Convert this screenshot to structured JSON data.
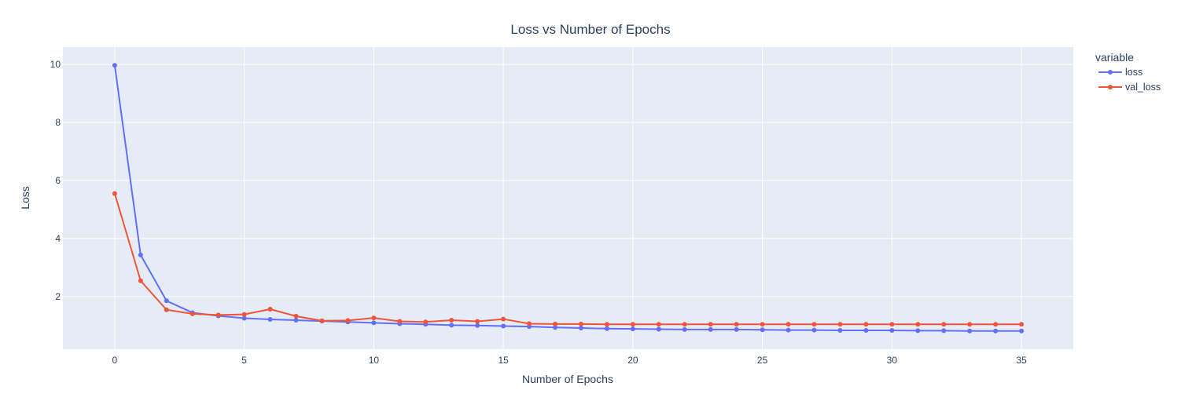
{
  "chart_data": {
    "type": "line",
    "title": "Loss vs Number of Epochs",
    "xlabel": "Number of Epochs",
    "ylabel": "Loss",
    "xlim": [
      -2,
      37
    ],
    "ylim": [
      0.18,
      10.6
    ],
    "xticks": [
      0,
      5,
      10,
      15,
      20,
      25,
      30,
      35
    ],
    "yticks": [
      2,
      4,
      6,
      8,
      10
    ],
    "grid": true,
    "legend": {
      "title": "variable",
      "position": "top-right"
    },
    "x": [
      0,
      1,
      2,
      3,
      4,
      5,
      6,
      7,
      8,
      9,
      10,
      11,
      12,
      13,
      14,
      15,
      16,
      17,
      18,
      19,
      20,
      21,
      22,
      23,
      24,
      25,
      26,
      27,
      28,
      29,
      30,
      31,
      32,
      33,
      34,
      35
    ],
    "series": [
      {
        "name": "loss",
        "color": "#636efa",
        "values": [
          9.97,
          3.43,
          1.85,
          1.44,
          1.33,
          1.25,
          1.21,
          1.18,
          1.15,
          1.12,
          1.09,
          1.06,
          1.04,
          1.01,
          1.0,
          0.98,
          0.96,
          0.93,
          0.91,
          0.89,
          0.88,
          0.87,
          0.86,
          0.86,
          0.86,
          0.85,
          0.84,
          0.84,
          0.83,
          0.83,
          0.83,
          0.82,
          0.82,
          0.81,
          0.81,
          0.81
        ]
      },
      {
        "name": "val_loss",
        "color": "#ef553b",
        "values": [
          5.55,
          2.54,
          1.54,
          1.4,
          1.36,
          1.38,
          1.56,
          1.32,
          1.16,
          1.17,
          1.26,
          1.14,
          1.12,
          1.18,
          1.14,
          1.22,
          1.06,
          1.05,
          1.05,
          1.04,
          1.04,
          1.04,
          1.04,
          1.04,
          1.04,
          1.04,
          1.04,
          1.04,
          1.04,
          1.04,
          1.04,
          1.04,
          1.04,
          1.04,
          1.04,
          1.04
        ]
      }
    ]
  }
}
